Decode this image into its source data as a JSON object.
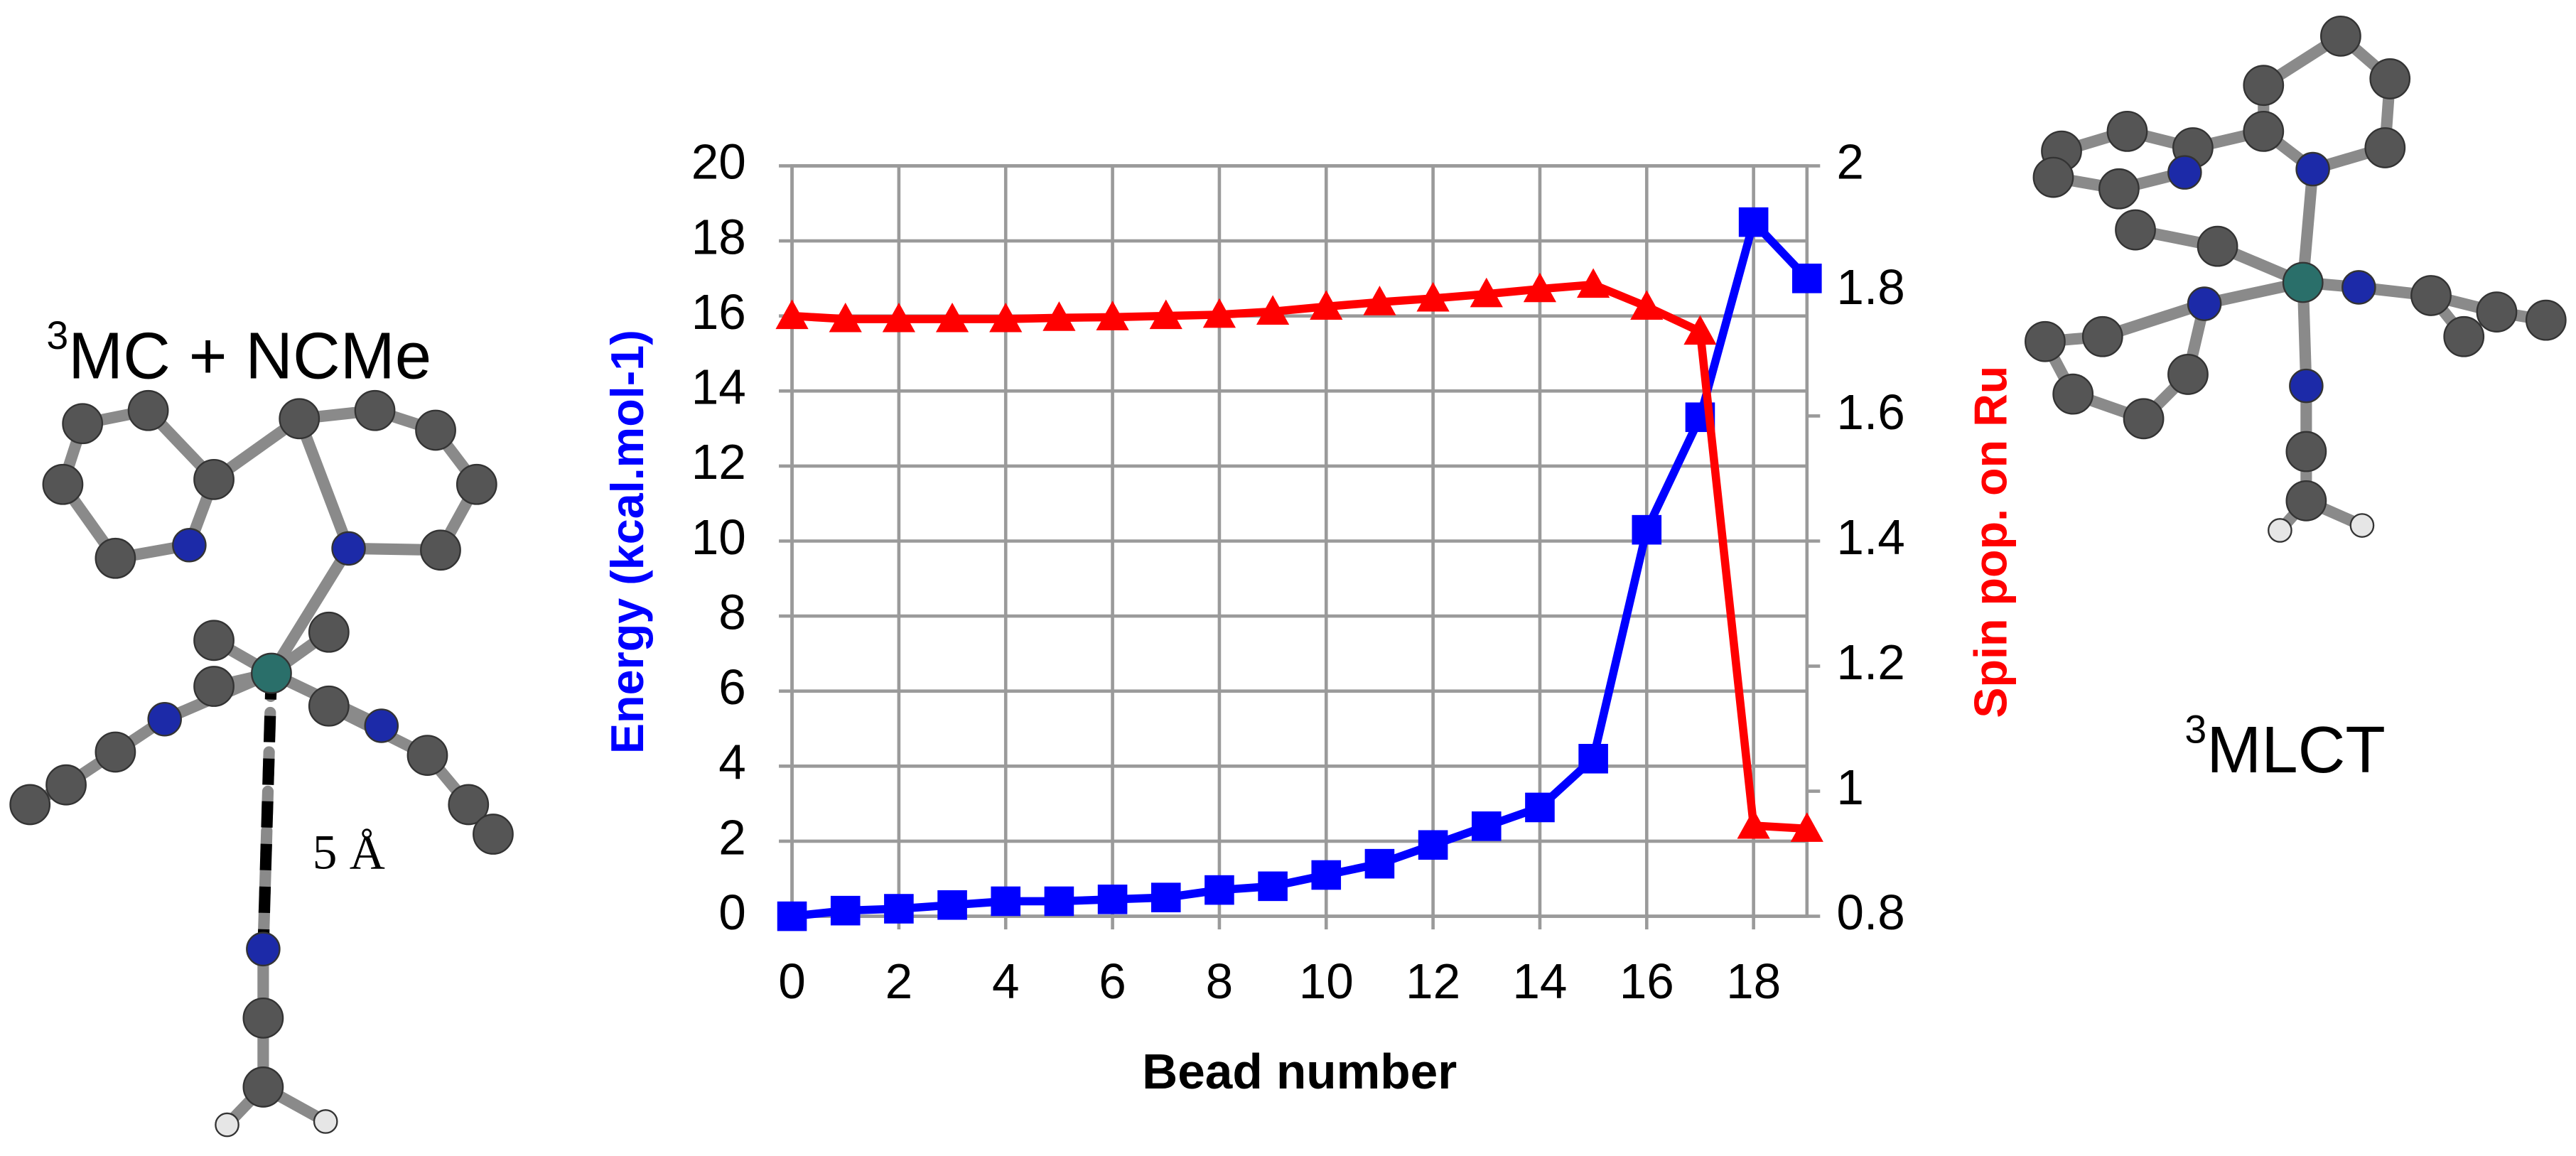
{
  "chart_data": {
    "type": "line",
    "x_label": "Bead number",
    "y_label": "Energy (kcal.mol-1)",
    "y2_label": "Spin pop. on Ru",
    "x": [
      0,
      1,
      2,
      3,
      4,
      5,
      6,
      7,
      8,
      9,
      10,
      11,
      12,
      13,
      14,
      15,
      16,
      17,
      18,
      19
    ],
    "xlim": [
      0,
      19
    ],
    "xticks": [
      0,
      2,
      4,
      6,
      8,
      10,
      12,
      14,
      16,
      18
    ],
    "ylim": [
      0,
      20
    ],
    "yticks": [
      0,
      2,
      4,
      6,
      8,
      10,
      12,
      14,
      16,
      18,
      20
    ],
    "y2lim": [
      0.8,
      2
    ],
    "y2ticks": [
      0.8,
      1,
      1.2,
      1.4,
      1.6,
      1.8,
      2
    ],
    "grid": true,
    "series": [
      {
        "name": "Energy",
        "color": "#0000ff",
        "marker": "square",
        "values": [
          0,
          0.15,
          0.2,
          0.3,
          0.4,
          0.4,
          0.45,
          0.5,
          0.7,
          0.8,
          1.1,
          1.4,
          1.9,
          2.4,
          2.9,
          4.2,
          10.3,
          13.3,
          18.5,
          17.0
        ]
      },
      {
        "name": "Spin pop. on Ru",
        "color": "#ff0000",
        "marker": "triangle",
        "axis": "y2",
        "values": [
          1.76,
          1.755,
          1.755,
          1.755,
          1.755,
          1.757,
          1.758,
          1.76,
          1.762,
          1.767,
          1.775,
          1.782,
          1.788,
          1.795,
          1.803,
          1.81,
          1.775,
          1.735,
          0.945,
          0.94
        ]
      }
    ],
    "annotations": {
      "left_state": {
        "superscript": "3",
        "text": "MC + NCMe"
      },
      "distance": "5 Å",
      "right_state": {
        "superscript": "3",
        "text": "MLCT"
      }
    }
  }
}
